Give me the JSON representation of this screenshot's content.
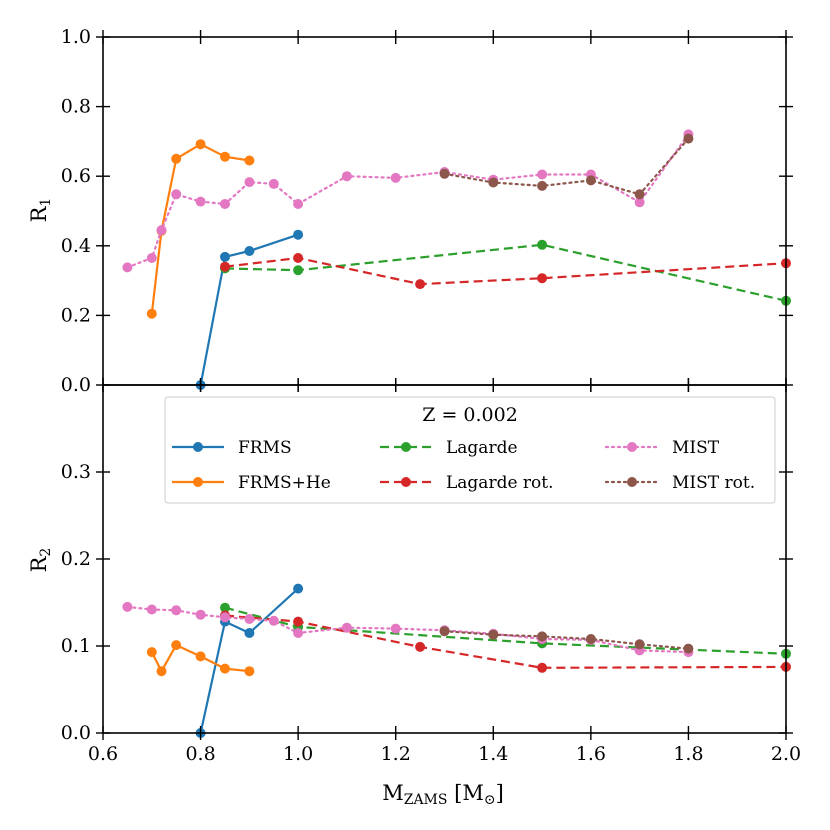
{
  "chart_data": {
    "type": "line",
    "xlabel": "M",
    "xlabel_sub": "ZAMS",
    "xlabel_unit_open": " [M",
    "xlabel_unit_sub": "⊙",
    "xlabel_unit_close": "]",
    "xlim": [
      0.6,
      2.0
    ],
    "xticks": [
      "0.6",
      "0.8",
      "1.0",
      "1.2",
      "1.4",
      "1.6",
      "1.8",
      "2.0"
    ],
    "xtick_values": [
      0.6,
      0.8,
      1.0,
      1.2,
      1.4,
      1.6,
      1.8,
      2.0
    ],
    "legend": {
      "title": "Z = 0.002",
      "columns": 3
    },
    "series_styles": [
      {
        "name": "FRMS",
        "color": "#1f77b4",
        "linestyle": "solid"
      },
      {
        "name": "FRMS+He",
        "color": "#ff7f0e",
        "linestyle": "solid"
      },
      {
        "name": "Lagarde",
        "color": "#2ca02c",
        "linestyle": "dashed"
      },
      {
        "name": "Lagarde rot.",
        "color": "#d62728",
        "linestyle": "dashed"
      },
      {
        "name": "MIST",
        "color": "#e377c2",
        "linestyle": "dotted"
      },
      {
        "name": "MIST rot.",
        "color": "#8c564b",
        "linestyle": "dotted"
      }
    ],
    "panels": [
      {
        "ylabel": "R",
        "ylabel_sub": "1",
        "ylim": [
          0,
          1.0
        ],
        "yticks": [
          "0.0",
          "0.2",
          "0.4",
          "0.6",
          "0.8",
          "1.0"
        ],
        "ytick_values": [
          0,
          0.2,
          0.4,
          0.6,
          0.8,
          1.0
        ],
        "series": [
          {
            "name": "FRMS",
            "x": [
              0.8,
              0.85,
              0.9,
              1.0
            ],
            "y": [
              0.0,
              0.368,
              0.385,
              0.432
            ]
          },
          {
            "name": "FRMS+He",
            "x": [
              0.7,
              0.72,
              0.75,
              0.8,
              0.85,
              0.9
            ],
            "y": [
              0.205,
              0.443,
              0.65,
              0.692,
              0.656,
              0.645
            ]
          },
          {
            "name": "Lagarde",
            "x": [
              0.85,
              1.0,
              1.5,
              2.0
            ],
            "y": [
              0.335,
              0.33,
              0.403,
              0.242
            ]
          },
          {
            "name": "Lagarde rot.",
            "x": [
              0.85,
              1.0,
              1.25,
              1.5,
              2.0
            ],
            "y": [
              0.34,
              0.365,
              0.29,
              0.307,
              0.35
            ]
          },
          {
            "name": "MIST",
            "x": [
              0.65,
              0.7,
              0.72,
              0.75,
              0.8,
              0.85,
              0.9,
              0.95,
              1.0,
              1.1,
              1.2,
              1.3,
              1.4,
              1.5,
              1.6,
              1.7,
              1.8
            ],
            "y": [
              0.338,
              0.365,
              0.445,
              0.548,
              0.527,
              0.52,
              0.583,
              0.578,
              0.52,
              0.6,
              0.595,
              0.612,
              0.59,
              0.605,
              0.605,
              0.525,
              0.72
            ]
          },
          {
            "name": "MIST rot.",
            "x": [
              1.3,
              1.4,
              1.5,
              1.6,
              1.7,
              1.8
            ],
            "y": [
              0.607,
              0.582,
              0.572,
              0.588,
              0.548,
              0.708
            ]
          }
        ]
      },
      {
        "ylabel": "R",
        "ylabel_sub": "2",
        "ylim": [
          0,
          0.4
        ],
        "yticks": [
          "0.0",
          "0.1",
          "0.2",
          "0.3"
        ],
        "ytick_values": [
          0,
          0.1,
          0.2,
          0.3
        ],
        "series": [
          {
            "name": "FRMS",
            "x": [
              0.8,
              0.85,
              0.9,
              1.0
            ],
            "y": [
              0.0,
              0.128,
              0.115,
              0.166
            ]
          },
          {
            "name": "FRMS+He",
            "x": [
              0.7,
              0.72,
              0.75,
              0.8,
              0.85,
              0.9
            ],
            "y": [
              0.093,
              0.071,
              0.101,
              0.088,
              0.074,
              0.071
            ]
          },
          {
            "name": "Lagarde",
            "x": [
              0.85,
              1.0,
              1.5,
              2.0
            ],
            "y": [
              0.144,
              0.122,
              0.103,
              0.091
            ]
          },
          {
            "name": "Lagarde rot.",
            "x": [
              0.85,
              1.0,
              1.25,
              1.5,
              2.0
            ],
            "y": [
              0.135,
              0.128,
              0.099,
              0.075,
              0.076
            ]
          },
          {
            "name": "MIST",
            "x": [
              0.65,
              0.7,
              0.75,
              0.8,
              0.85,
              0.9,
              0.95,
              1.0,
              1.1,
              1.2,
              1.3,
              1.4,
              1.5,
              1.6,
              1.7,
              1.8
            ],
            "y": [
              0.145,
              0.142,
              0.141,
              0.136,
              0.133,
              0.131,
              0.129,
              0.115,
              0.121,
              0.12,
              0.118,
              0.114,
              0.108,
              0.107,
              0.095,
              0.093
            ]
          },
          {
            "name": "MIST rot.",
            "x": [
              1.3,
              1.4,
              1.5,
              1.6,
              1.7,
              1.8
            ],
            "y": [
              0.117,
              0.113,
              0.111,
              0.108,
              0.102,
              0.097
            ]
          }
        ]
      }
    ]
  }
}
